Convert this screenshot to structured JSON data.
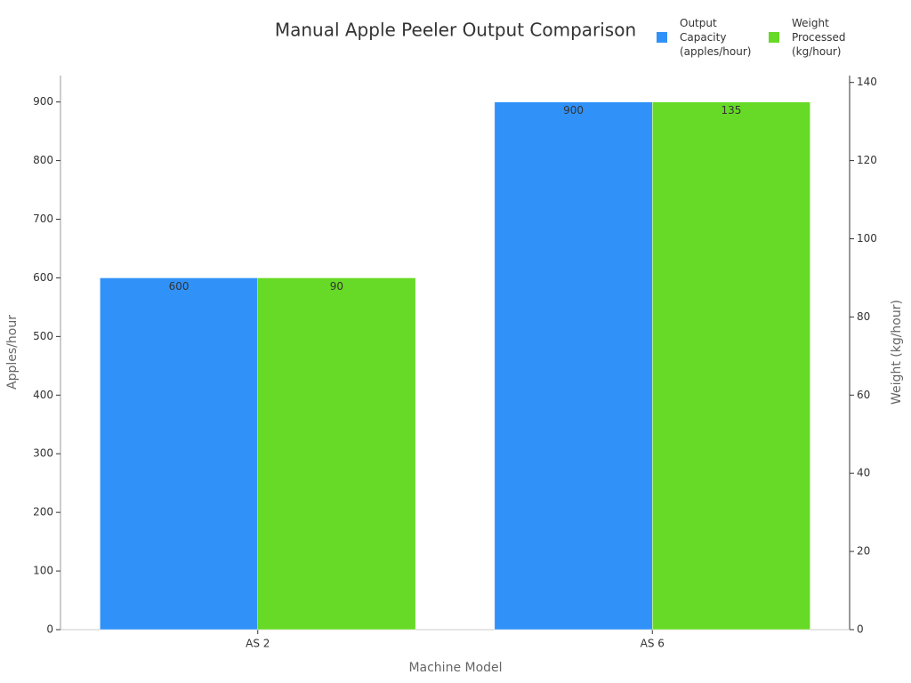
{
  "chart_data": {
    "type": "bar",
    "title": "Manual Apple Peeler Output Comparison",
    "x_label": "Machine Model",
    "y_label": "Apples/hour",
    "y2_label": "Weight (kg/hour)",
    "categories": [
      "AS 2",
      "AS 6"
    ],
    "series": [
      {
        "name": "Output Capacity (apples/hour)",
        "color": "#3092f8",
        "values": [
          600,
          900
        ]
      },
      {
        "name": "Weight Processed (kg/hour)",
        "color": "#66da26",
        "values": [
          90,
          135
        ],
        "axis": "y2"
      }
    ],
    "ylim": [
      0,
      945
    ],
    "yticks": [
      0,
      100,
      200,
      300,
      400,
      500,
      600,
      700,
      800,
      900
    ],
    "y2lim": [
      0,
      141.75
    ],
    "y2ticks": [
      0,
      20,
      40,
      60,
      80,
      100,
      120,
      140
    ],
    "grid": false,
    "legend": "top-right"
  }
}
